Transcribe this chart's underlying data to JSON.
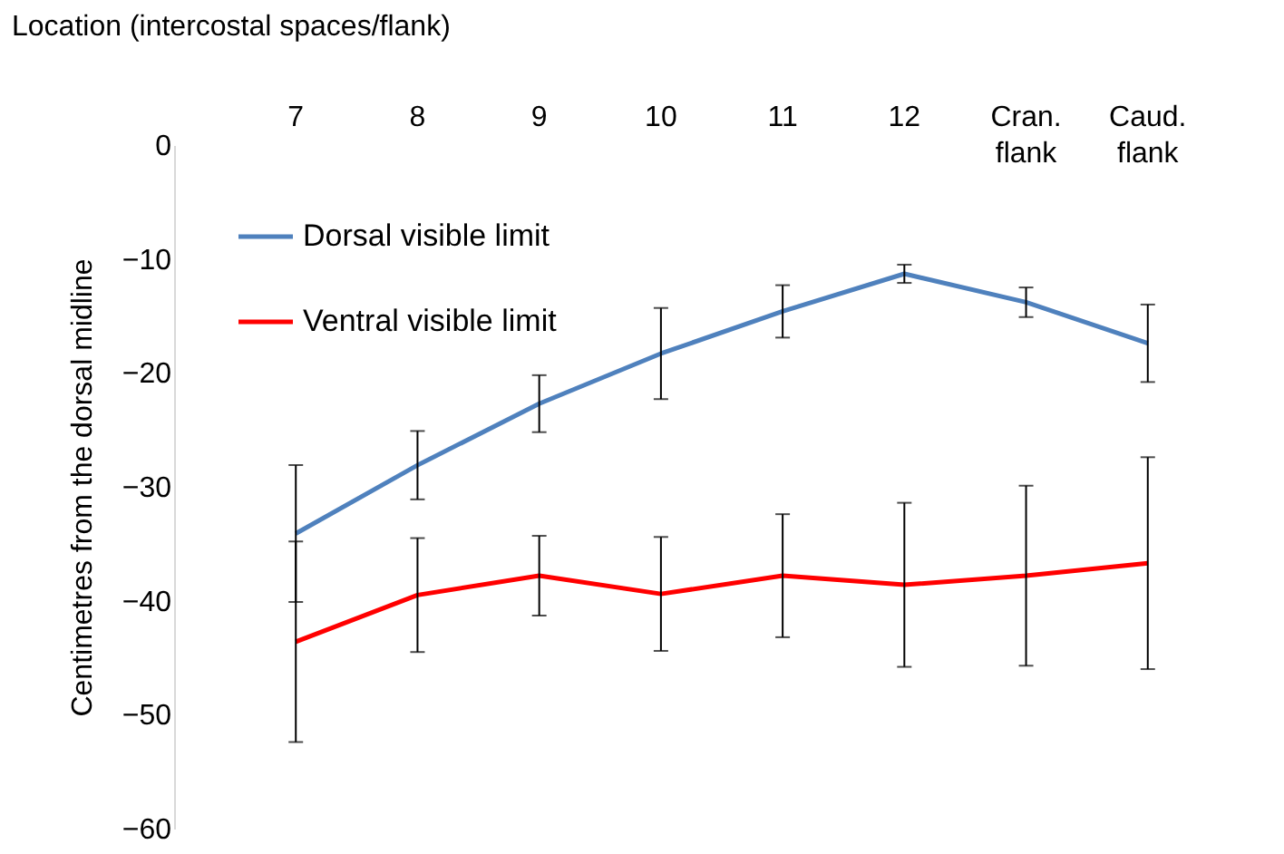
{
  "chart_data": {
    "type": "line",
    "xlabel": "Location (intercostal spaces/flank)",
    "ylabel": "Centimetres from the dorsal midline",
    "categories": [
      "7",
      "8",
      "9",
      "10",
      "11",
      "12",
      "Cran. flank",
      "Caud. flank"
    ],
    "series": [
      {
        "name": "Dorsal visible limit",
        "color": "#4f81bd",
        "values": [
          -34.1,
          -28.1,
          -22.7,
          -18.3,
          -14.6,
          -11.3,
          -13.8,
          -17.4
        ],
        "errors": [
          6,
          3,
          2.5,
          4,
          2.3,
          0.8,
          1.3,
          3.4
        ]
      },
      {
        "name": "Ventral visible limit",
        "color": "#ff0000",
        "values": [
          -43.6,
          -39.5,
          -37.8,
          -39.4,
          -37.8,
          -38.6,
          -37.8,
          -36.7
        ],
        "errors": [
          8.8,
          5,
          3.5,
          5,
          5.4,
          7.2,
          7.9,
          9.3
        ]
      }
    ],
    "ylim": [
      -60,
      0
    ],
    "yticks": [
      0,
      -10,
      -20,
      -30,
      -40,
      -50,
      -60
    ],
    "grid": false,
    "legend": "top left",
    "marker": "none",
    "line_style": "solid"
  }
}
